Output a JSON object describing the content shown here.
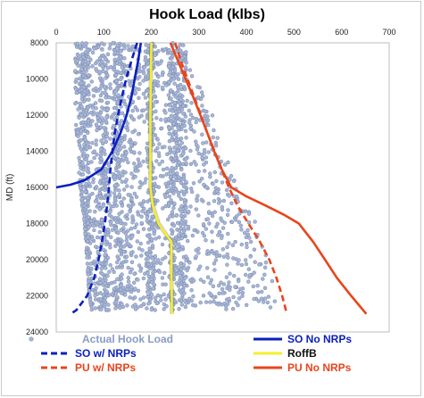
{
  "chart_data": {
    "type": "line",
    "title": "Hook Load (klbs)",
    "xlabel": "",
    "ylabel": "MD (ft)",
    "x_axis_position": "top",
    "y_axis_inverted": true,
    "xlim": [
      0,
      700
    ],
    "ylim": [
      8000,
      24000
    ],
    "x_ticks": [
      0,
      100,
      200,
      300,
      400,
      500,
      600,
      700
    ],
    "y_ticks": [
      8000,
      10000,
      12000,
      14000,
      16000,
      18000,
      20000,
      22000,
      24000
    ],
    "grid": false,
    "legend_position": "bottom",
    "series": [
      {
        "name": "SO No NRPs",
        "color": "#0a1fbf",
        "style": "solid",
        "points": [
          [
            178,
            8000
          ],
          [
            172,
            9000
          ],
          [
            165,
            10000
          ],
          [
            158,
            11000
          ],
          [
            148,
            12000
          ],
          [
            135,
            13000
          ],
          [
            118,
            14000
          ],
          [
            95,
            15000
          ],
          [
            60,
            15600
          ],
          [
            30,
            15850
          ],
          [
            0,
            16000
          ]
        ]
      },
      {
        "name": "SO w/ NRPs",
        "color": "#0a1fbf",
        "style": "dashed",
        "points": [
          [
            170,
            8000
          ],
          [
            158,
            9000
          ],
          [
            147,
            10000
          ],
          [
            138,
            11000
          ],
          [
            130,
            12000
          ],
          [
            123,
            13000
          ],
          [
            118,
            14000
          ],
          [
            114,
            15000
          ],
          [
            111,
            16000
          ],
          [
            107,
            17000
          ],
          [
            102,
            18000
          ],
          [
            96,
            19000
          ],
          [
            89,
            20000
          ],
          [
            80,
            21000
          ],
          [
            65,
            22000
          ],
          [
            42,
            22800
          ],
          [
            30,
            23000
          ]
        ]
      },
      {
        "name": "RoffB",
        "color": "#f2ef2e",
        "style": "solid",
        "points": [
          [
            200,
            8000
          ],
          [
            199,
            10000
          ],
          [
            198,
            12000
          ],
          [
            198,
            14000
          ],
          [
            198,
            16000
          ],
          [
            203,
            17000
          ],
          [
            215,
            18000
          ],
          [
            228,
            18500
          ],
          [
            242,
            19000
          ],
          [
            242,
            20000
          ],
          [
            242,
            21000
          ],
          [
            243,
            22000
          ],
          [
            243,
            23000
          ]
        ]
      },
      {
        "name": "PU w/ NRPs",
        "color": "#e8451c",
        "style": "dashed",
        "points": [
          [
            250,
            8000
          ],
          [
            262,
            9000
          ],
          [
            276,
            10000
          ],
          [
            290,
            11000
          ],
          [
            304,
            12000
          ],
          [
            318,
            13000
          ],
          [
            333,
            14000
          ],
          [
            348,
            15000
          ],
          [
            363,
            16000
          ],
          [
            381,
            17000
          ],
          [
            404,
            18000
          ],
          [
            428,
            19000
          ],
          [
            448,
            20000
          ],
          [
            463,
            21000
          ],
          [
            475,
            22000
          ],
          [
            485,
            23000
          ]
        ]
      },
      {
        "name": "PU No NRPs",
        "color": "#e8451c",
        "style": "solid",
        "points": [
          [
            240,
            8000
          ],
          [
            256,
            9000
          ],
          [
            272,
            10000
          ],
          [
            288,
            11000
          ],
          [
            303,
            12000
          ],
          [
            318,
            13000
          ],
          [
            332,
            14000
          ],
          [
            348,
            15000
          ],
          [
            368,
            16000
          ],
          [
            400,
            16500
          ],
          [
            440,
            17000
          ],
          [
            478,
            17500
          ],
          [
            510,
            18000
          ],
          [
            540,
            19000
          ],
          [
            565,
            20000
          ],
          [
            590,
            21000
          ],
          [
            620,
            22000
          ],
          [
            652,
            23000
          ]
        ]
      },
      {
        "name": "Actual Hook Load",
        "color": "#7f8fb5",
        "style": "markers",
        "band": [
          [
            8000,
            40,
            265
          ],
          [
            10000,
            40,
            295
          ],
          [
            12000,
            40,
            330
          ],
          [
            14000,
            45,
            355
          ],
          [
            16000,
            50,
            380
          ],
          [
            18000,
            60,
            420
          ],
          [
            20000,
            65,
            445
          ],
          [
            22000,
            70,
            462
          ],
          [
            22800,
            75,
            470
          ]
        ],
        "dense_columns": [
          60,
          100,
          130,
          200,
          245,
          265
        ]
      }
    ]
  }
}
